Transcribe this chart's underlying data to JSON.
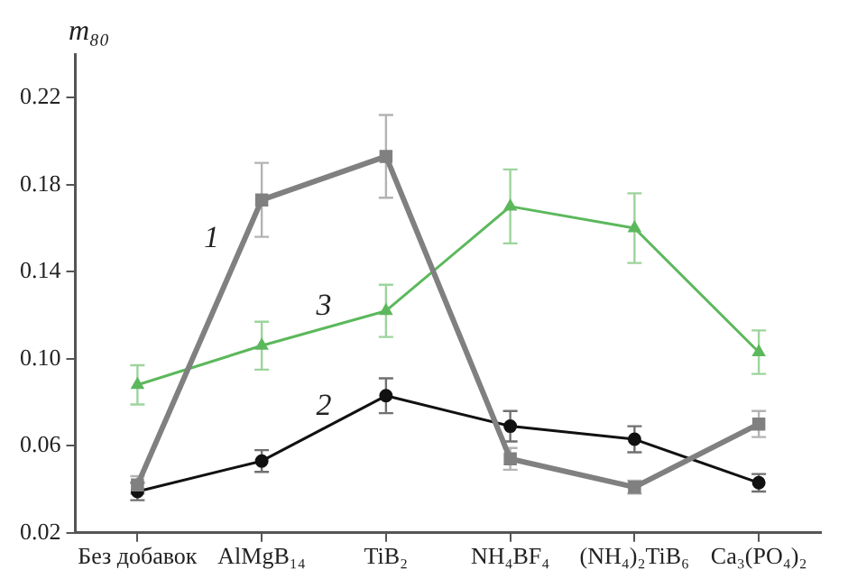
{
  "chart_data": {
    "type": "line",
    "ylabel": "m₈₀",
    "categories": [
      "Без добавок",
      "AlMgB₁₄",
      "TiB₂",
      "NH₄BF₄",
      "(NH₄)₂TiB₆",
      "Ca₃(PO₄)₂"
    ],
    "series": [
      {
        "name": "1",
        "color": "#808080",
        "marker": "square",
        "values": [
          0.042,
          0.173,
          0.193,
          0.054,
          0.041,
          0.07
        ],
        "errors": [
          0.004,
          0.017,
          0.019,
          0.005,
          0.003,
          0.006
        ]
      },
      {
        "name": "2",
        "color": "#111111",
        "marker": "circle",
        "values": [
          0.039,
          0.053,
          0.083,
          0.069,
          0.063,
          0.043
        ],
        "errors": [
          0.004,
          0.005,
          0.008,
          0.007,
          0.006,
          0.004
        ]
      },
      {
        "name": "3",
        "color": "#5cb85c",
        "marker": "triangle",
        "values": [
          0.088,
          0.106,
          0.122,
          0.17,
          0.16,
          0.103
        ],
        "errors": [
          0.009,
          0.011,
          0.012,
          0.017,
          0.016,
          0.01
        ]
      }
    ],
    "ylim": [
      0.02,
      0.24
    ],
    "yticks": [
      0.02,
      0.06,
      {
        "value": 0.1,
        "label": "0.10"
      },
      0.14,
      0.18,
      0.22
    ],
    "grid": false,
    "legend": false
  }
}
